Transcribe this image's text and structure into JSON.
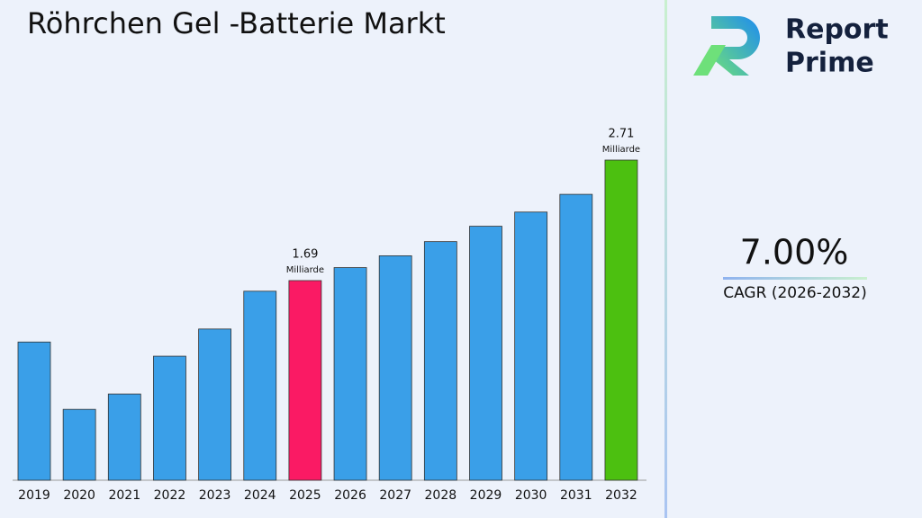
{
  "chart_data": {
    "type": "bar",
    "title": "Röhrchen Gel -Batterie Markt",
    "categories": [
      "2019",
      "2020",
      "2021",
      "2022",
      "2023",
      "2024",
      "2025",
      "2026",
      "2027",
      "2028",
      "2029",
      "2030",
      "2031",
      "2032"
    ],
    "values": [
      1.17,
      0.6,
      0.73,
      1.05,
      1.28,
      1.6,
      1.69,
      1.8,
      1.9,
      2.02,
      2.15,
      2.27,
      2.42,
      2.71
    ],
    "colors": [
      "#3a9fe8",
      "#3a9fe8",
      "#3a9fe8",
      "#3a9fe8",
      "#3a9fe8",
      "#3a9fe8",
      "#fa1a64",
      "#3a9fe8",
      "#3a9fe8",
      "#3a9fe8",
      "#3a9fe8",
      "#3a9fe8",
      "#3a9fe8",
      "#4cc010"
    ],
    "value_labels": [
      null,
      null,
      null,
      null,
      null,
      null,
      "1.69",
      null,
      null,
      null,
      null,
      null,
      null,
      "2.71"
    ],
    "value_unit": "Milliarde"
  },
  "cagr": {
    "value": "7.00%",
    "label": "CAGR (2026-2032)"
  },
  "logo": {
    "line1": "Report",
    "line2": "Prime"
  }
}
